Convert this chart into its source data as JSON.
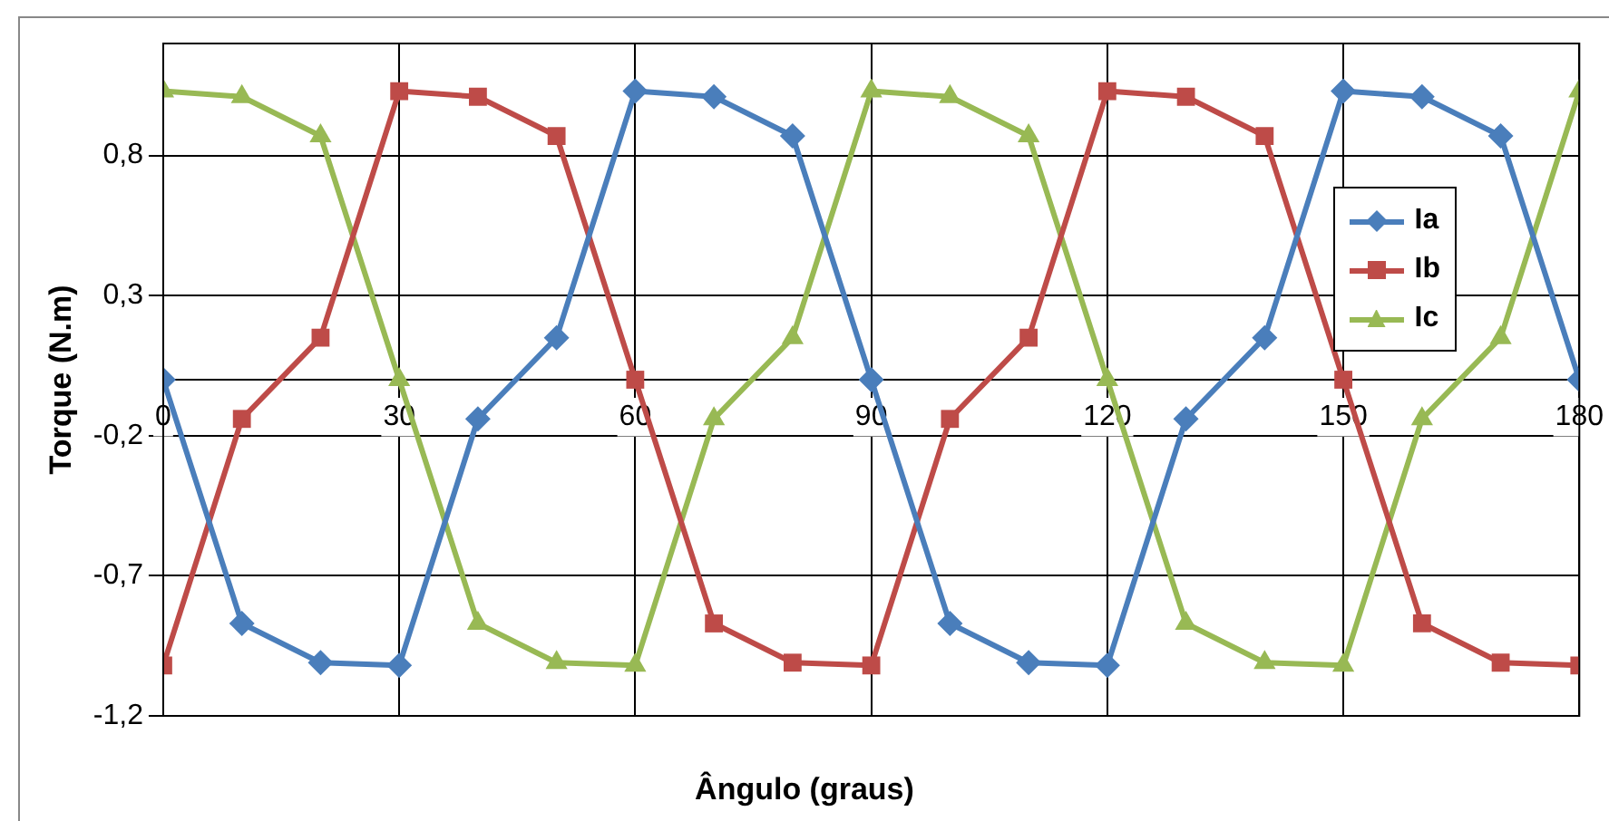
{
  "chart_data": {
    "type": "line",
    "xlabel": "Ângulo (graus)",
    "ylabel": "Torque (N.m)",
    "x": [
      0,
      10,
      20,
      30,
      40,
      50,
      60,
      70,
      80,
      90,
      100,
      110,
      120,
      130,
      140,
      150,
      160,
      170,
      180
    ],
    "series": [
      {
        "name": "Ia",
        "color": "#4a7ebb",
        "marker": "diamond",
        "values": [
          0,
          -0.87,
          -1.01,
          -1.02,
          -0.14,
          0.15,
          1.03,
          1.01,
          0.87,
          0,
          -0.87,
          -1.01,
          -1.02,
          -0.14,
          0.15,
          1.03,
          1.01,
          0.87,
          0
        ]
      },
      {
        "name": "Ib",
        "color": "#be4b48",
        "marker": "square",
        "values": [
          -1.02,
          -0.14,
          0.15,
          1.03,
          1.01,
          0.87,
          0,
          -0.87,
          -1.01,
          -1.02,
          -0.14,
          0.15,
          1.03,
          1.01,
          0.87,
          0,
          -0.87,
          -1.01,
          -1.02
        ]
      },
      {
        "name": "Ic",
        "color": "#98b954",
        "marker": "triangle",
        "values": [
          1.03,
          1.01,
          0.87,
          0,
          -0.87,
          -1.01,
          -1.02,
          -0.14,
          0.15,
          1.03,
          1.01,
          0.87,
          0,
          -0.87,
          -1.01,
          -1.02,
          -0.14,
          0.15,
          1.03
        ]
      }
    ],
    "xlim": [
      0,
      180
    ],
    "xticks": [
      0,
      30,
      60,
      90,
      120,
      150,
      180
    ],
    "ylim": [
      -1.2,
      1.2
    ],
    "yticks": [
      {
        "value": -1.2,
        "label": "-1,2"
      },
      {
        "value": -0.7,
        "label": "-0,7"
      },
      {
        "value": -0.2,
        "label": "-0,2"
      },
      {
        "value": 0.3,
        "label": "0,3"
      },
      {
        "value": 0.8,
        "label": "0,8"
      }
    ],
    "grid": true,
    "legend": "right",
    "line_style": "solid"
  }
}
